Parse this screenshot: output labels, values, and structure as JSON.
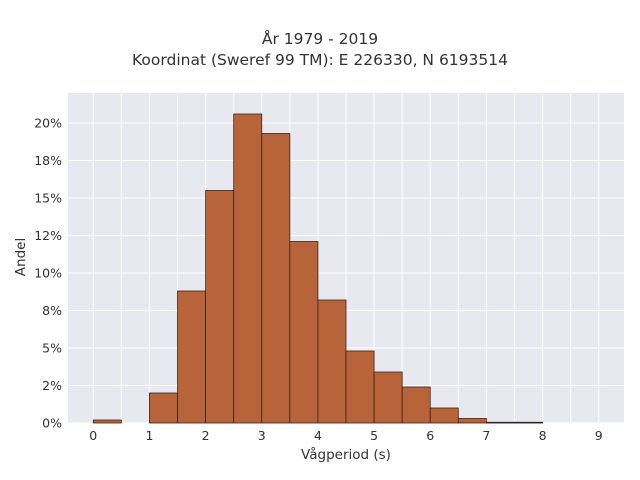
{
  "chart_data": {
    "type": "bar",
    "title_lines": [
      "År 1979 - 2019",
      "Koordinat (Sweref 99 TM): E 226330, N 6193514"
    ],
    "xlabel": "Vågperiod (s)",
    "ylabel": "Andel",
    "bin_width": 0.5,
    "bins": [
      {
        "start": 0.0,
        "value": 0.2
      },
      {
        "start": 0.5,
        "value": 0.0
      },
      {
        "start": 1.0,
        "value": 2.0
      },
      {
        "start": 1.5,
        "value": 8.8
      },
      {
        "start": 2.0,
        "value": 15.5
      },
      {
        "start": 2.5,
        "value": 20.6
      },
      {
        "start": 3.0,
        "value": 19.3
      },
      {
        "start": 3.5,
        "value": 12.1
      },
      {
        "start": 4.0,
        "value": 8.2
      },
      {
        "start": 4.5,
        "value": 4.8
      },
      {
        "start": 5.0,
        "value": 3.4
      },
      {
        "start": 5.5,
        "value": 2.4
      },
      {
        "start": 6.0,
        "value": 1.0
      },
      {
        "start": 6.5,
        "value": 0.3
      },
      {
        "start": 7.0,
        "value": 0.05
      },
      {
        "start": 7.5,
        "value": 0.05
      }
    ],
    "xlim": [
      -0.45,
      9.45
    ],
    "ylim": [
      0,
      22.0
    ],
    "x_ticks": [
      0,
      1,
      2,
      3,
      4,
      5,
      6,
      7,
      8,
      9
    ],
    "x_tick_labels": [
      "0",
      "1",
      "2",
      "3",
      "4",
      "5",
      "6",
      "7",
      "8",
      "9"
    ],
    "y_ticks": [
      0,
      2.5,
      5,
      7.5,
      10,
      12.5,
      15,
      17.5,
      20
    ],
    "y_tick_labels": [
      "0%",
      "2%",
      "5%",
      "8%",
      "10%",
      "12%",
      "15%",
      "18%",
      "20%"
    ],
    "grid": true,
    "bar_color": "#b8643a",
    "bar_edge_color": "#3a2418",
    "plot_bg_color": "#e8e8f1",
    "grid_color": "#ffffff"
  }
}
